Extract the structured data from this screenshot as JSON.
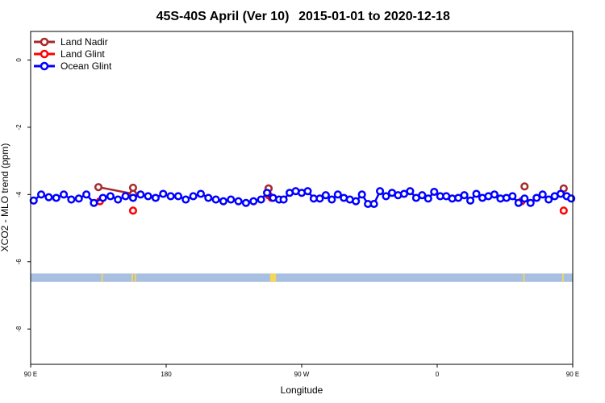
{
  "title_left": "45S-40S April (Ver 10)",
  "title_right": "2015-01-01 to 2020-12-18",
  "chart_data": {
    "type": "scatter",
    "xlabel": "Longitude",
    "ylabel": "XCO2 - MLO trend (ppm)",
    "xlim": [
      90,
      450
    ],
    "ylim": [
      -9.05,
      0.85
    ],
    "x_ticks": [
      {
        "value": 90,
        "label": "90 E"
      },
      {
        "value": 180,
        "label": "180"
      },
      {
        "value": 270,
        "label": "90 W"
      },
      {
        "value": 360,
        "label": "0"
      },
      {
        "value": 450,
        "label": "90 E"
      },
      {
        "value": 540,
        "label": "180"
      }
    ],
    "y_ticks": [
      0,
      -2,
      -4,
      -6,
      -8
    ],
    "legend_position": "top-left",
    "series": [
      {
        "name": "Land Nadir",
        "color": "#a52a2a",
        "points": [
          [
            135,
            -3.78
          ],
          [
            158,
            -3.98
          ],
          [
            158,
            -3.8
          ],
          [
            248,
            -3.82
          ],
          [
            248,
            -3.82
          ],
          [
            418,
            -3.76
          ],
          [
            444,
            -3.82
          ]
        ]
      },
      {
        "name": "Land Glint",
        "color": "#ff0000",
        "points": [
          [
            136,
            -4.2
          ],
          [
            158,
            -4.48
          ],
          [
            248,
            -4.02
          ],
          [
            250,
            -4.1
          ],
          [
            416,
            -4.2
          ],
          [
            444,
            -4.48
          ]
        ]
      },
      {
        "name": "Ocean Glint",
        "color": "#0000ff",
        "points": [
          [
            92,
            -4.18
          ],
          [
            97,
            -4.0
          ],
          [
            102,
            -4.08
          ],
          [
            107,
            -4.1
          ],
          [
            112,
            -4.0
          ],
          [
            117,
            -4.15
          ],
          [
            122,
            -4.12
          ],
          [
            127,
            -4.0
          ],
          [
            132,
            -4.25
          ],
          [
            138,
            -4.1
          ],
          [
            143,
            -4.05
          ],
          [
            148,
            -4.15
          ],
          [
            153,
            -4.05
          ],
          [
            158,
            -4.1
          ],
          [
            163,
            -4.0
          ],
          [
            168,
            -4.05
          ],
          [
            173,
            -4.1
          ],
          [
            178,
            -3.98
          ],
          [
            183,
            -4.05
          ],
          [
            188,
            -4.05
          ],
          [
            193,
            -4.15
          ],
          [
            198,
            -4.05
          ],
          [
            203,
            -3.98
          ],
          [
            208,
            -4.1
          ],
          [
            213,
            -4.15
          ],
          [
            218,
            -4.2
          ],
          [
            223,
            -4.15
          ],
          [
            228,
            -4.2
          ],
          [
            233,
            -4.25
          ],
          [
            238,
            -4.2
          ],
          [
            243,
            -4.15
          ],
          [
            247,
            -3.95
          ],
          [
            251,
            -4.1
          ],
          [
            255,
            -4.15
          ],
          [
            258,
            -4.15
          ],
          [
            262,
            -3.95
          ],
          [
            266,
            -3.9
          ],
          [
            270,
            -3.95
          ],
          [
            274,
            -3.9
          ],
          [
            278,
            -4.12
          ],
          [
            282,
            -4.12
          ],
          [
            286,
            -4.02
          ],
          [
            290,
            -4.15
          ],
          [
            294,
            -4.0
          ],
          [
            298,
            -4.1
          ],
          [
            302,
            -4.15
          ],
          [
            306,
            -4.2
          ],
          [
            310,
            -4.0
          ],
          [
            314,
            -4.28
          ],
          [
            318,
            -4.28
          ],
          [
            322,
            -3.9
          ],
          [
            326,
            -4.05
          ],
          [
            330,
            -3.95
          ],
          [
            334,
            -4.02
          ],
          [
            338,
            -3.98
          ],
          [
            342,
            -3.9
          ],
          [
            346,
            -4.1
          ],
          [
            350,
            -4.02
          ],
          [
            354,
            -4.12
          ],
          [
            358,
            -3.92
          ],
          [
            362,
            -4.05
          ],
          [
            366,
            -4.05
          ],
          [
            370,
            -4.12
          ],
          [
            374,
            -4.1
          ],
          [
            378,
            -4.02
          ],
          [
            382,
            -4.18
          ],
          [
            386,
            -3.98
          ],
          [
            390,
            -4.1
          ],
          [
            394,
            -4.05
          ],
          [
            398,
            -4.0
          ],
          [
            402,
            -4.12
          ],
          [
            406,
            -4.1
          ],
          [
            410,
            -4.05
          ],
          [
            414,
            -4.25
          ],
          [
            418,
            -4.12
          ],
          [
            422,
            -4.25
          ],
          [
            426,
            -4.1
          ],
          [
            430,
            -4.0
          ],
          [
            434,
            -4.15
          ],
          [
            438,
            -4.05
          ],
          [
            442,
            -3.98
          ],
          [
            446,
            -4.05
          ],
          [
            449,
            -4.12
          ]
        ]
      }
    ],
    "surface_band": {
      "y_range": [
        -6.6,
        -6.35
      ],
      "ocean_color": "#a7bfe0",
      "land_color": "#f5d55b",
      "land_x": [
        [
          137,
          138
        ],
        [
          157,
          158
        ],
        [
          159,
          160
        ],
        [
          249,
          253
        ],
        [
          417,
          418
        ],
        [
          443,
          444
        ]
      ]
    }
  }
}
